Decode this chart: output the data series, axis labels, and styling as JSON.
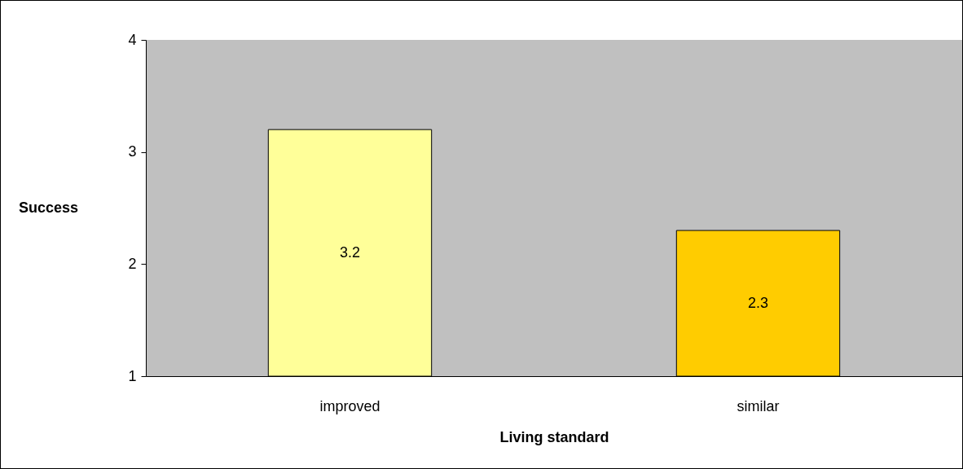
{
  "chart_data": {
    "type": "bar",
    "xlabel": "Living standard",
    "ylabel": "Success",
    "categories": [
      "improved",
      "similar"
    ],
    "values": [
      3.2,
      2.3
    ],
    "colors": [
      "#ffff99",
      "#ffcc00"
    ],
    "ylim": [
      1,
      4
    ],
    "yticks": [
      1,
      2,
      3,
      4
    ],
    "data_labels": true,
    "grid": false,
    "legend": false
  }
}
